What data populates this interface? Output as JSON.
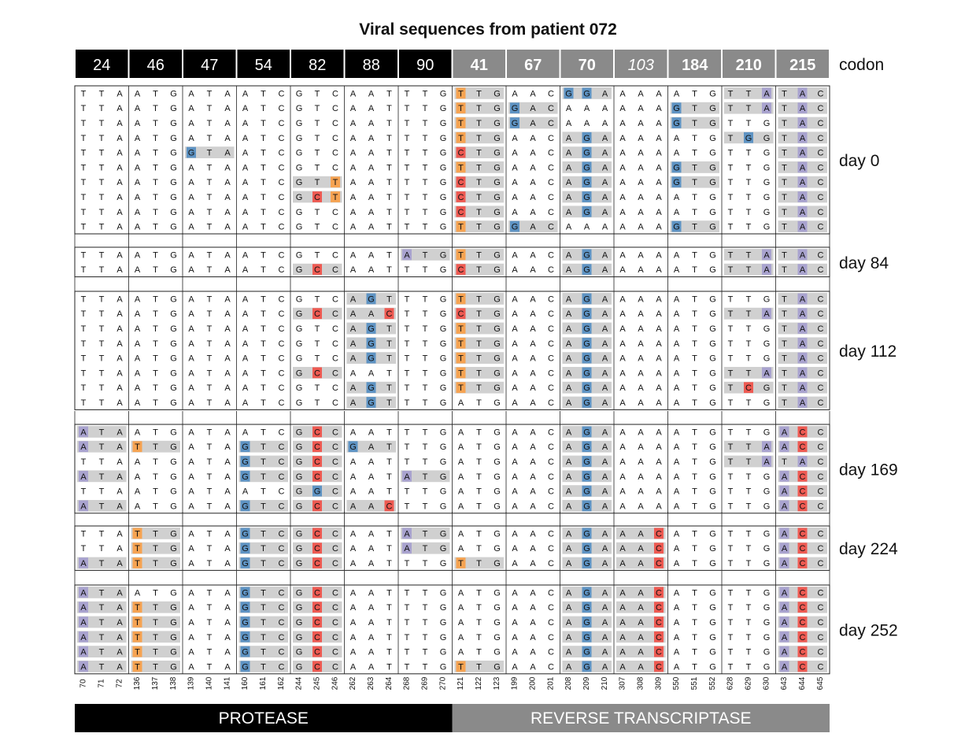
{
  "title": "Viral sequences from patient 072",
  "codon_label": "codon",
  "codons": [
    {
      "label": "24",
      "region": "protease",
      "bold": false,
      "italic": false
    },
    {
      "label": "46",
      "region": "protease",
      "bold": false,
      "italic": false
    },
    {
      "label": "47",
      "region": "protease",
      "bold": false,
      "italic": false
    },
    {
      "label": "54",
      "region": "protease",
      "bold": false,
      "italic": false
    },
    {
      "label": "82",
      "region": "protease",
      "bold": false,
      "italic": false
    },
    {
      "label": "88",
      "region": "protease",
      "bold": false,
      "italic": false
    },
    {
      "label": "90",
      "region": "protease",
      "bold": false,
      "italic": false
    },
    {
      "label": "41",
      "region": "rt",
      "bold": true,
      "italic": false
    },
    {
      "label": "67",
      "region": "rt",
      "bold": true,
      "italic": false
    },
    {
      "label": "70",
      "region": "rt",
      "bold": true,
      "italic": false
    },
    {
      "label": "103",
      "region": "rt",
      "bold": false,
      "italic": true
    },
    {
      "label": "184",
      "region": "rt",
      "bold": true,
      "italic": false
    },
    {
      "label": "210",
      "region": "rt",
      "bold": true,
      "italic": false
    },
    {
      "label": "215",
      "region": "rt",
      "bold": true,
      "italic": false
    }
  ],
  "positions": [
    "70",
    "71",
    "72",
    "136",
    "137",
    "138",
    "139",
    "140",
    "141",
    "160",
    "161",
    "162",
    "244",
    "245",
    "246",
    "262",
    "263",
    "264",
    "268",
    "269",
    "270",
    "121",
    "122",
    "123",
    "199",
    "200",
    "201",
    "208",
    "209",
    "210",
    "307",
    "308",
    "309",
    "550",
    "551",
    "552",
    "628",
    "629",
    "630",
    "643",
    "644",
    "645"
  ],
  "regions": [
    {
      "label": "PROTEASE",
      "color": "#000000"
    },
    {
      "label": "REVERSE TRANSCRIPTASE",
      "color": "#8a8a8a"
    }
  ],
  "colors": {
    "A": "#a9a3cf",
    "C": "#ee5a52",
    "G": "#5e93c3",
    "T": "#f6a352",
    "mutated_codon": "#d0d0d0"
  },
  "wildtype": [
    "TTA",
    "ATG",
    "ATA",
    "ATC",
    "GTC",
    "AAT",
    "TTG",
    "TTG",
    "AAC",
    "AAA",
    "AAA",
    "ATG",
    "TTG",
    "TGC"
  ],
  "reference_codon_41": "ATG",
  "groups": [
    {
      "label": "day 0",
      "rows": [
        [
          "TTA",
          "ATG",
          "ATA",
          "ATC",
          "GTC",
          "AAT",
          "TTG",
          "TTG",
          "AAC",
          "GGA",
          "AAA",
          "ATG",
          "TTA",
          "TAC"
        ],
        [
          "TTA",
          "ATG",
          "ATA",
          "ATC",
          "GTC",
          "AAT",
          "TTG",
          "TTG",
          "GAC",
          "AAA",
          "AAA",
          "GTG",
          "TTA",
          "TAC"
        ],
        [
          "TTA",
          "ATG",
          "ATA",
          "ATC",
          "GTC",
          "AAT",
          "TTG",
          "TTG",
          "GAC",
          "AAA",
          "AAA",
          "GTG",
          "TTG",
          "TAC"
        ],
        [
          "TTA",
          "ATG",
          "ATA",
          "ATC",
          "GTC",
          "AAT",
          "TTG",
          "TTG",
          "AAC",
          "AGA",
          "AAA",
          "ATG",
          "TGG",
          "TAC"
        ],
        [
          "TTA",
          "ATG",
          "GTA",
          "ATC",
          "GTC",
          "AAT",
          "TTG",
          "CTG",
          "AAC",
          "AGA",
          "AAA",
          "ATG",
          "TTG",
          "TAC"
        ],
        [
          "TTA",
          "ATG",
          "ATA",
          "ATC",
          "GTC",
          "AAT",
          "TTG",
          "TTG",
          "AAC",
          "AGA",
          "AAA",
          "GTG",
          "TTG",
          "TAC"
        ],
        [
          "TTA",
          "ATG",
          "ATA",
          "ATC",
          "GTT",
          "AAT",
          "TTG",
          "CTG",
          "AAC",
          "AGA",
          "AAA",
          "GTG",
          "TTG",
          "TAC"
        ],
        [
          "TTA",
          "ATG",
          "ATA",
          "ATC",
          "GCT",
          "AAT",
          "TTG",
          "CTG",
          "AAC",
          "AGA",
          "AAA",
          "ATG",
          "TTG",
          "TAC"
        ],
        [
          "TTA",
          "ATG",
          "ATA",
          "ATC",
          "GTC",
          "AAT",
          "TTG",
          "CTG",
          "AAC",
          "AGA",
          "AAA",
          "ATG",
          "TTG",
          "TAC"
        ],
        [
          "TTA",
          "ATG",
          "ATA",
          "ATC",
          "GTC",
          "AAT",
          "TTG",
          "TTG",
          "GAC",
          "AAA",
          "AAA",
          "GTG",
          "TTG",
          "TAC"
        ]
      ]
    },
    {
      "label": "day 84",
      "rows": [
        [
          "TTA",
          "ATG",
          "ATA",
          "ATC",
          "GTC",
          "AAT",
          "ATG",
          "TTG",
          "AAC",
          "AGA",
          "AAA",
          "ATG",
          "TTA",
          "TAC"
        ],
        [
          "TTA",
          "ATG",
          "ATA",
          "ATC",
          "GCC",
          "AAT",
          "TTG",
          "CTG",
          "AAC",
          "AGA",
          "AAA",
          "ATG",
          "TTA",
          "TAC"
        ]
      ]
    },
    {
      "label": "day 112",
      "rows": [
        [
          "TTA",
          "ATG",
          "ATA",
          "ATC",
          "GTC",
          "AGT",
          "TTG",
          "TTG",
          "AAC",
          "AGA",
          "AAA",
          "ATG",
          "TTG",
          "TAC"
        ],
        [
          "TTA",
          "ATG",
          "ATA",
          "ATC",
          "GCC",
          "AAC",
          "TTG",
          "CTG",
          "AAC",
          "AGA",
          "AAA",
          "ATG",
          "TTA",
          "TAC"
        ],
        [
          "TTA",
          "ATG",
          "ATA",
          "ATC",
          "GTC",
          "AGT",
          "TTG",
          "TTG",
          "AAC",
          "AGA",
          "AAA",
          "ATG",
          "TTG",
          "TAC"
        ],
        [
          "TTA",
          "ATG",
          "ATA",
          "ATC",
          "GTC",
          "AGT",
          "TTG",
          "TTG",
          "AAC",
          "AGA",
          "AAA",
          "ATG",
          "TTG",
          "TAC"
        ],
        [
          "TTA",
          "ATG",
          "ATA",
          "ATC",
          "GTC",
          "AGT",
          "TTG",
          "TTG",
          "AAC",
          "AGA",
          "AAA",
          "ATG",
          "TTG",
          "TAC"
        ],
        [
          "TTA",
          "ATG",
          "ATA",
          "ATC",
          "GCC",
          "AAT",
          "TTG",
          "TTG",
          "AAC",
          "AGA",
          "AAA",
          "ATG",
          "TTA",
          "TAC"
        ],
        [
          "TTA",
          "ATG",
          "ATA",
          "ATC",
          "GTC",
          "AGT",
          "TTG",
          "TTG",
          "AAC",
          "AGA",
          "AAA",
          "ATG",
          "TCG",
          "TAC"
        ],
        [
          "TTA",
          "ATG",
          "ATA",
          "ATC",
          "GTC",
          "AGT",
          "TTG",
          "ATG",
          "AAC",
          "AGA",
          "AAA",
          "ATG",
          "TTG",
          "TAC"
        ]
      ]
    },
    {
      "label": "day 169",
      "rows": [
        [
          "ATA",
          "ATG",
          "ATA",
          "ATC",
          "GCC",
          "AAT",
          "TTG",
          "ATG",
          "AAC",
          "AGA",
          "AAA",
          "ATG",
          "TTG",
          "ACC"
        ],
        [
          "ATA",
          "TTG",
          "ATA",
          "GTC",
          "GCC",
          "GAT",
          "TTG",
          "ATG",
          "AAC",
          "AGA",
          "AAA",
          "ATG",
          "TTA",
          "ACC"
        ],
        [
          "TTA",
          "ATG",
          "ATA",
          "GTC",
          "GCC",
          "AAT",
          "TTG",
          "ATG",
          "AAC",
          "AGA",
          "AAA",
          "ATG",
          "TTA",
          "TAC"
        ],
        [
          "ATA",
          "ATG",
          "ATA",
          "GTC",
          "GCC",
          "AAT",
          "ATG",
          "ATG",
          "AAC",
          "AGA",
          "AAA",
          "ATG",
          "TTG",
          "ACC"
        ],
        [
          "TTA",
          "ATG",
          "ATA",
          "ATC",
          "GGC",
          "AAT",
          "TTG",
          "ATG",
          "AAC",
          "AGA",
          "AAA",
          "ATG",
          "TTG",
          "ACC"
        ],
        [
          "ATA",
          "ATG",
          "ATA",
          "GTC",
          "GCC",
          "AAC",
          "TTG",
          "ATG",
          "AAC",
          "AGA",
          "AAA",
          "ATG",
          "TTG",
          "ACC"
        ]
      ]
    },
    {
      "label": "day 224",
      "rows": [
        [
          "TTA",
          "TTG",
          "ATA",
          "GTC",
          "GCC",
          "AAT",
          "ATG",
          "ATG",
          "AAC",
          "AGA",
          "AAC",
          "ATG",
          "TTG",
          "ACC"
        ],
        [
          "TTA",
          "TTG",
          "ATA",
          "GTC",
          "GCC",
          "AAT",
          "ATG",
          "ATG",
          "AAC",
          "AGA",
          "AAC",
          "ATG",
          "TTG",
          "ACC"
        ],
        [
          "ATA",
          "TTG",
          "ATA",
          "GTC",
          "GCC",
          "AAT",
          "TTG",
          "TTG",
          "AAC",
          "AGA",
          "AAC",
          "ATG",
          "TTG",
          "ACC"
        ]
      ]
    },
    {
      "label": "day 252",
      "rows": [
        [
          "ATA",
          "ATG",
          "ATA",
          "GTC",
          "GCC",
          "AAT",
          "TTG",
          "ATG",
          "AAC",
          "AGA",
          "AAC",
          "ATG",
          "TTG",
          "ACC"
        ],
        [
          "ATA",
          "TTG",
          "ATA",
          "GTC",
          "GCC",
          "AAT",
          "TTG",
          "ATG",
          "AAC",
          "AGA",
          "AAC",
          "ATG",
          "TTG",
          "ACC"
        ],
        [
          "ATA",
          "TTG",
          "ATA",
          "GTC",
          "GCC",
          "AAT",
          "TTG",
          "ATG",
          "AAC",
          "AGA",
          "AAC",
          "ATG",
          "TTG",
          "ACC"
        ],
        [
          "ATA",
          "TTG",
          "ATA",
          "GTC",
          "GCC",
          "AAT",
          "TTG",
          "ATG",
          "AAC",
          "AGA",
          "AAC",
          "ATG",
          "TTG",
          "ACC"
        ],
        [
          "ATA",
          "TTG",
          "ATA",
          "GTC",
          "GCC",
          "AAT",
          "TTG",
          "ATG",
          "AAC",
          "AGA",
          "AAC",
          "ATG",
          "TTG",
          "ACC"
        ],
        [
          "ATA",
          "TTG",
          "ATA",
          "GTC",
          "GCC",
          "AAT",
          "TTG",
          "TTG",
          "AAC",
          "AGA",
          "AAC",
          "ATG",
          "TTG",
          "ACC"
        ]
      ]
    }
  ]
}
